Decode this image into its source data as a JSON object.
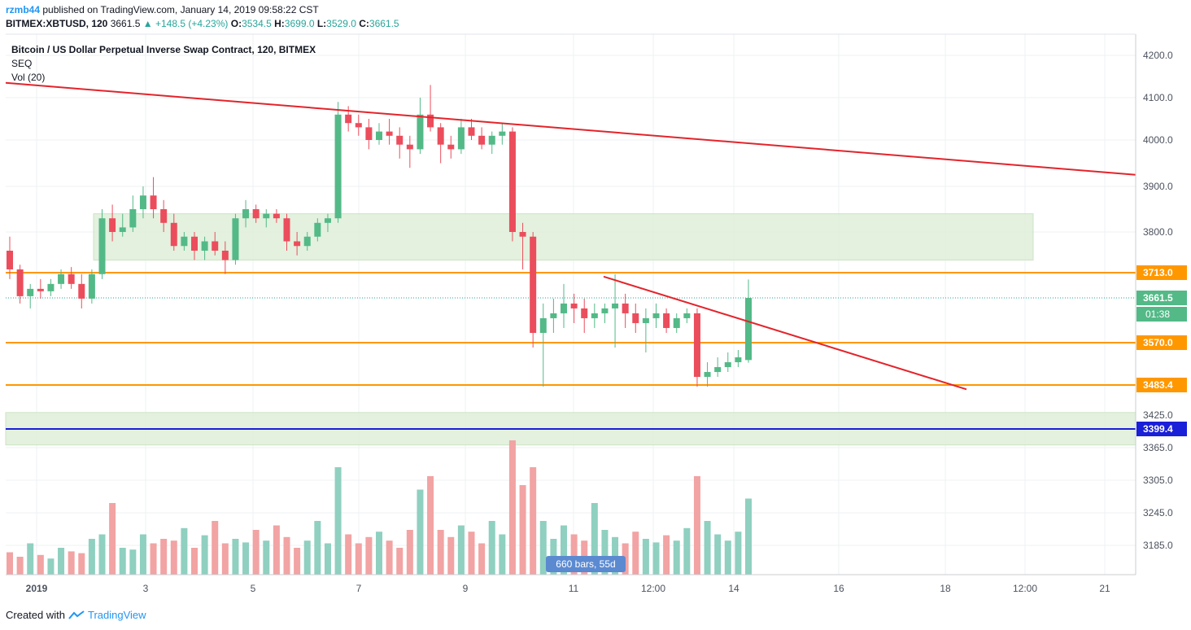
{
  "header": {
    "publisher": "rzmb44",
    "published_text": "published on TradingView.com, January 14, 2019 09:58:22 CST",
    "symbol_line": "BITMEX:XBTUSD, 120",
    "last": "3661.5",
    "change": "+148.5 (+4.23%)",
    "o_label": "O:",
    "o": "3534.5",
    "h_label": "H:",
    "h": "3699.0",
    "l_label": "L:",
    "l": "3529.0",
    "c_label": "C:",
    "c": "3661.5"
  },
  "legend": {
    "title": "Bitcoin / US Dollar Perpetual Inverse Swap Contract, 120, BITMEX",
    "study1": "SEQ",
    "study2": "Vol (20)"
  },
  "footer": {
    "created_with": "Created with",
    "brand": "TradingView"
  },
  "badge": "660 bars, 55d",
  "colors": {
    "up": "#53b987",
    "down": "#eb4d5c",
    "vol_up": "#8fd0c0",
    "vol_down": "#f2a3a3",
    "trend": "#e3242b",
    "level": "#ff9800",
    "support": "#1a1fd8",
    "zone": "#dcedd6",
    "grid": "#eef0f3",
    "axis_text": "#4c525e"
  },
  "chart_data": {
    "type": "candlestick",
    "y_axis": {
      "min": 3100,
      "max": 4250,
      "ticks": [
        "4200.0",
        "4100.0",
        "4000.0",
        "3900.0",
        "3800.0",
        "3425.0",
        "3365.0",
        "3305.0",
        "3245.0",
        "3185.0"
      ],
      "tick_values": [
        4200,
        4100,
        4000,
        3900,
        3800,
        3425,
        3365,
        3305,
        3245,
        3185
      ]
    },
    "x_axis": {
      "labels": [
        "2019",
        "3",
        "5",
        "7",
        "9",
        "11",
        "12:00",
        "14",
        "16",
        "18",
        "12:00",
        "21"
      ],
      "bold": [
        "2019"
      ]
    },
    "price_labels": [
      {
        "value": 3713.0,
        "text": "3713.0",
        "kind": "level"
      },
      {
        "value": 3661.5,
        "text": "3661.5",
        "kind": "last"
      },
      {
        "value": 3570.0,
        "text": "3570.0",
        "kind": "level"
      },
      {
        "value": 3483.4,
        "text": "3483.4",
        "kind": "level"
      },
      {
        "value": 3399.4,
        "text": "3399.4",
        "kind": "support"
      }
    ],
    "countdown": "01:38",
    "horizontal_levels": [
      3713.0,
      3570.0,
      3483.4
    ],
    "support_line": 3399.4,
    "last_price": 3661.5,
    "zones": [
      {
        "from_date": "Jan 2 06:00",
        "to_date": "Jan 19 06:00",
        "low": 3740,
        "high": 3840
      },
      {
        "from_date": "Dec 31 12:00",
        "to_date": "Jan 22",
        "low": 3370,
        "high": 3430
      }
    ],
    "trendlines": [
      {
        "from": [
          "Dec 31 12:00",
          4135
        ],
        "to": [
          "Jan 22",
          3925
        ]
      },
      {
        "from": [
          "Jan 11 08:00",
          3705
        ],
        "to": [
          "Jan 18 06:00",
          3475
        ]
      }
    ],
    "candles": [
      [
        3760,
        3790,
        3700,
        3720
      ],
      [
        3720,
        3730,
        3650,
        3665
      ],
      [
        3665,
        3690,
        3640,
        3680
      ],
      [
        3680,
        3700,
        3660,
        3675
      ],
      [
        3675,
        3700,
        3665,
        3690
      ],
      [
        3690,
        3720,
        3680,
        3710
      ],
      [
        3710,
        3725,
        3680,
        3690
      ],
      [
        3690,
        3710,
        3640,
        3660
      ],
      [
        3660,
        3720,
        3650,
        3710
      ],
      [
        3710,
        3850,
        3700,
        3830
      ],
      [
        3830,
        3860,
        3780,
        3800
      ],
      [
        3800,
        3840,
        3790,
        3810
      ],
      [
        3810,
        3880,
        3800,
        3850
      ],
      [
        3850,
        3900,
        3830,
        3880
      ],
      [
        3880,
        3920,
        3830,
        3850
      ],
      [
        3850,
        3870,
        3800,
        3820
      ],
      [
        3820,
        3840,
        3760,
        3770
      ],
      [
        3770,
        3800,
        3760,
        3790
      ],
      [
        3790,
        3800,
        3740,
        3760
      ],
      [
        3760,
        3790,
        3740,
        3780
      ],
      [
        3780,
        3800,
        3750,
        3760
      ],
      [
        3760,
        3780,
        3710,
        3740
      ],
      [
        3740,
        3840,
        3730,
        3830
      ],
      [
        3830,
        3870,
        3810,
        3850
      ],
      [
        3850,
        3860,
        3820,
        3830
      ],
      [
        3830,
        3850,
        3810,
        3840
      ],
      [
        3840,
        3850,
        3820,
        3830
      ],
      [
        3830,
        3840,
        3760,
        3780
      ],
      [
        3780,
        3800,
        3750,
        3770
      ],
      [
        3770,
        3800,
        3760,
        3790
      ],
      [
        3790,
        3830,
        3780,
        3820
      ],
      [
        3820,
        3840,
        3800,
        3830
      ],
      [
        3830,
        4090,
        3820,
        4060
      ],
      [
        4060,
        4080,
        4020,
        4040
      ],
      [
        4040,
        4060,
        4010,
        4030
      ],
      [
        4030,
        4050,
        3980,
        4000
      ],
      [
        4000,
        4040,
        3990,
        4020
      ],
      [
        4020,
        4050,
        3990,
        4010
      ],
      [
        4010,
        4030,
        3960,
        3990
      ],
      [
        3990,
        4010,
        3940,
        3980
      ],
      [
        3980,
        4100,
        3970,
        4060
      ],
      [
        4060,
        4130,
        4020,
        4030
      ],
      [
        4030,
        4040,
        3950,
        3990
      ],
      [
        3990,
        4010,
        3960,
        3980
      ],
      [
        3980,
        4050,
        3970,
        4030
      ],
      [
        4030,
        4050,
        4000,
        4010
      ],
      [
        4010,
        4030,
        3980,
        3990
      ],
      [
        3990,
        4020,
        3970,
        4010
      ],
      [
        4010,
        4040,
        3990,
        4020
      ],
      [
        4020,
        4030,
        3780,
        3800
      ],
      [
        3800,
        3820,
        3720,
        3790
      ],
      [
        3790,
        3800,
        3560,
        3590
      ],
      [
        3590,
        3650,
        3480,
        3620
      ],
      [
        3620,
        3660,
        3590,
        3630
      ],
      [
        3630,
        3690,
        3600,
        3650
      ],
      [
        3650,
        3670,
        3610,
        3640
      ],
      [
        3640,
        3660,
        3590,
        3620
      ],
      [
        3620,
        3650,
        3600,
        3630
      ],
      [
        3630,
        3650,
        3610,
        3640
      ],
      [
        3640,
        3710,
        3560,
        3650
      ],
      [
        3650,
        3670,
        3600,
        3630
      ],
      [
        3630,
        3650,
        3590,
        3610
      ],
      [
        3610,
        3640,
        3550,
        3620
      ],
      [
        3620,
        3650,
        3600,
        3630
      ],
      [
        3630,
        3640,
        3590,
        3600
      ],
      [
        3600,
        3630,
        3590,
        3620
      ],
      [
        3620,
        3640,
        3610,
        3630
      ],
      [
        3630,
        3640,
        3480,
        3500
      ],
      [
        3500,
        3530,
        3480,
        3510
      ],
      [
        3510,
        3540,
        3500,
        3520
      ],
      [
        3520,
        3550,
        3510,
        3530
      ],
      [
        3530,
        3555,
        3520,
        3540
      ],
      [
        3534.5,
        3699,
        3529,
        3661.5
      ]
    ],
    "volume": [
      25,
      20,
      35,
      22,
      18,
      30,
      26,
      24,
      40,
      45,
      80,
      30,
      28,
      45,
      35,
      40,
      38,
      52,
      30,
      44,
      60,
      35,
      40,
      36,
      50,
      38,
      55,
      42,
      30,
      38,
      60,
      35,
      120,
      45,
      35,
      42,
      48,
      38,
      30,
      50,
      95,
      110,
      50,
      42,
      55,
      48,
      35,
      60,
      45,
      150,
      100,
      120,
      60,
      40,
      55,
      45,
      38,
      80,
      50,
      42,
      35,
      48,
      40,
      36,
      44,
      38,
      52,
      110,
      60,
      45,
      38,
      48,
      85
    ],
    "volume_colors": "up/down per candle"
  }
}
